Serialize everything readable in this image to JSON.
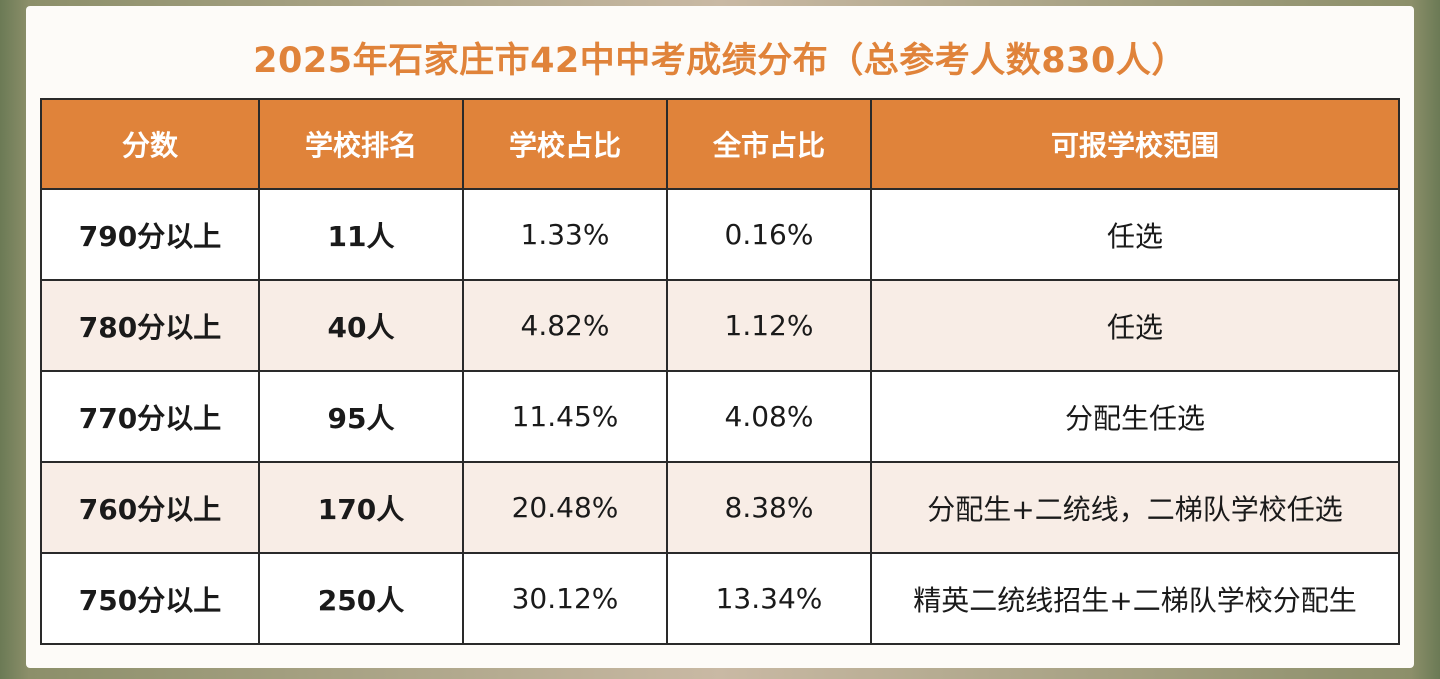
{
  "title": "2025年石家庄市42中中考成绩分布（总参考人数830人）",
  "colors": {
    "accent": "#e0833a",
    "rank_text": "#c4282a",
    "row_alt": "#f8ede6",
    "border": "#2a2a2a"
  },
  "table": {
    "headers": [
      "分数",
      "学校排名",
      "学校占比",
      "全市占比",
      "可报学校范围"
    ],
    "rows": [
      {
        "score": "790分以上",
        "rank": "11人",
        "school_pct": "1.33%",
        "city_pct": "0.16%",
        "scope": "任选"
      },
      {
        "score": "780分以上",
        "rank": "40人",
        "school_pct": "4.82%",
        "city_pct": "1.12%",
        "scope": "任选"
      },
      {
        "score": "770分以上",
        "rank": "95人",
        "school_pct": "11.45%",
        "city_pct": "4.08%",
        "scope": "分配生任选"
      },
      {
        "score": "760分以上",
        "rank": "170人",
        "school_pct": "20.48%",
        "city_pct": "8.38%",
        "scope": "分配生+二统线，二梯队学校任选"
      },
      {
        "score": "750分以上",
        "rank": "250人",
        "school_pct": "30.12%",
        "city_pct": "13.34%",
        "scope": "精英二统线招生+二梯队学校分配生"
      }
    ]
  }
}
